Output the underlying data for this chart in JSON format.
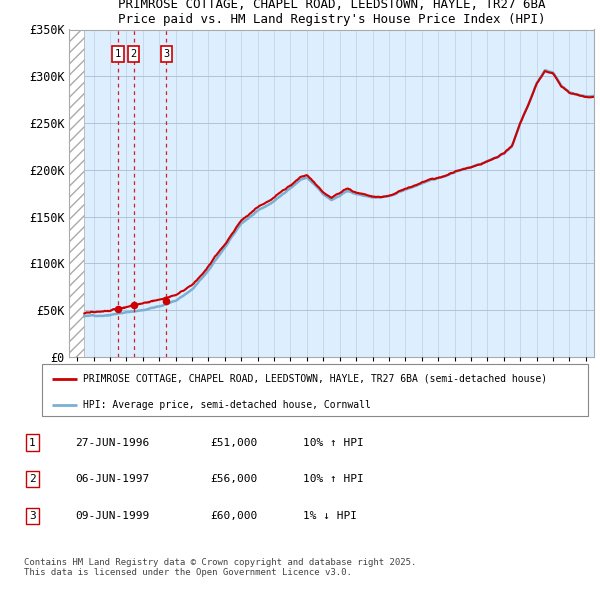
{
  "title1": "PRIMROSE COTTAGE, CHAPEL ROAD, LEEDSTOWN, HAYLE, TR27 6BA",
  "title2": "Price paid vs. HM Land Registry's House Price Index (HPI)",
  "ylabel_ticks": [
    "£0",
    "£50K",
    "£100K",
    "£150K",
    "£200K",
    "£250K",
    "£300K",
    "£350K"
  ],
  "ytick_values": [
    0,
    50000,
    100000,
    150000,
    200000,
    250000,
    300000,
    350000
  ],
  "ylim": [
    0,
    350000
  ],
  "xlim_start": 1993.5,
  "xlim_end": 2025.5,
  "hatch_end": 1994.42,
  "transactions": [
    {
      "num": 1,
      "date": "27-JUN-1996",
      "x": 1996.49,
      "price": 51000,
      "label": "10% ↑ HPI"
    },
    {
      "num": 2,
      "date": "06-JUN-1997",
      "x": 1997.44,
      "price": 56000,
      "label": "10% ↑ HPI"
    },
    {
      "num": 3,
      "date": "09-JUN-1999",
      "x": 1999.44,
      "price": 60000,
      "label": "1% ↓ HPI"
    }
  ],
  "legend_line1": "PRIMROSE COTTAGE, CHAPEL ROAD, LEEDSTOWN, HAYLE, TR27 6BA (semi-detached house)",
  "legend_line2": "HPI: Average price, semi-detached house, Cornwall",
  "footer": "Contains HM Land Registry data © Crown copyright and database right 2025.\nThis data is licensed under the Open Government Licence v3.0.",
  "red_color": "#cc0000",
  "blue_color": "#7ab0d4",
  "bg_color": "#ddeeff",
  "grid_color": "#b0c4d8"
}
